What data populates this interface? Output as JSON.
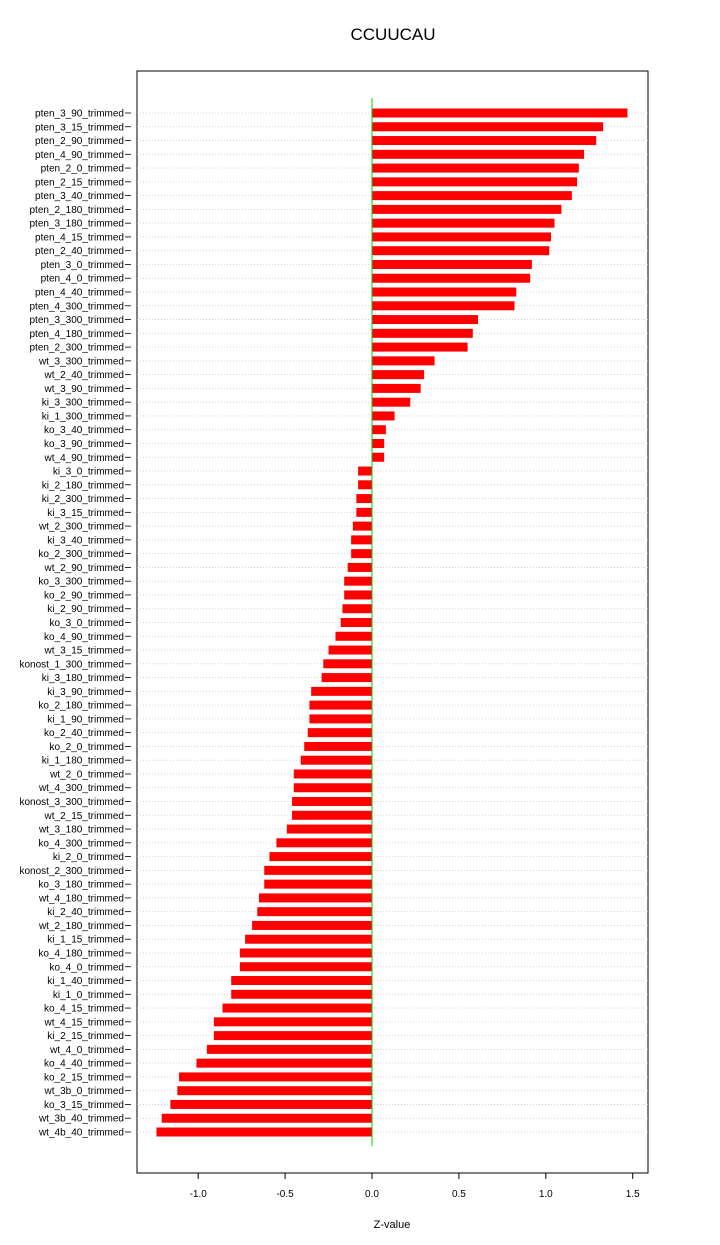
{
  "chart_data": {
    "type": "bar",
    "orientation": "horizontal",
    "title": "CCUUCAU",
    "xlabel": "Z-value",
    "ylabel": "",
    "xlim": [
      -1.33,
      1.58
    ],
    "xticks": [
      -1.0,
      -0.5,
      0.0,
      0.5,
      1.0,
      1.5
    ],
    "xtick_labels": [
      "-1.0",
      "-0.5",
      "0.0",
      "0.5",
      "1.0",
      "1.5"
    ],
    "grid": "horizontal dotted lines per category",
    "bar_color": "#ff0000",
    "zero_line_color": "#00cc00",
    "categories": [
      "pten_3_90_trimmed",
      "pten_3_15_trimmed",
      "pten_2_90_trimmed",
      "pten_4_90_trimmed",
      "pten_2_0_trimmed",
      "pten_2_15_trimmed",
      "pten_3_40_trimmed",
      "pten_2_180_trimmed",
      "pten_3_180_trimmed",
      "pten_4_15_trimmed",
      "pten_2_40_trimmed",
      "pten_3_0_trimmed",
      "pten_4_0_trimmed",
      "pten_4_40_trimmed",
      "pten_4_300_trimmed",
      "pten_3_300_trimmed",
      "pten_4_180_trimmed",
      "pten_2_300_trimmed",
      "wt_3_300_trimmed",
      "wt_2_40_trimmed",
      "wt_3_90_trimmed",
      "ki_3_300_trimmed",
      "ki_1_300_trimmed",
      "ko_3_40_trimmed",
      "ko_3_90_trimmed",
      "wt_4_90_trimmed",
      "ki_3_0_trimmed",
      "ki_2_180_trimmed",
      "ki_2_300_trimmed",
      "ki_3_15_trimmed",
      "wt_2_300_trimmed",
      "ki_3_40_trimmed",
      "ko_2_300_trimmed",
      "wt_2_90_trimmed",
      "ko_3_300_trimmed",
      "ko_2_90_trimmed",
      "ki_2_90_trimmed",
      "ko_3_0_trimmed",
      "ko_4_90_trimmed",
      "wt_3_15_trimmed",
      "konost_1_300_trimmed",
      "ki_3_180_trimmed",
      "ki_3_90_trimmed",
      "ko_2_180_trimmed",
      "ki_1_90_trimmed",
      "ko_2_40_trimmed",
      "ko_2_0_trimmed",
      "ki_1_180_trimmed",
      "wt_2_0_trimmed",
      "wt_4_300_trimmed",
      "konost_3_300_trimmed",
      "wt_2_15_trimmed",
      "wt_3_180_trimmed",
      "ko_4_300_trimmed",
      "ki_2_0_trimmed",
      "konost_2_300_trimmed",
      "ko_3_180_trimmed",
      "wt_4_180_trimmed",
      "ki_2_40_trimmed",
      "wt_2_180_trimmed",
      "ki_1_15_trimmed",
      "ko_4_180_trimmed",
      "ko_4_0_trimmed",
      "ki_1_40_trimmed",
      "ki_1_0_trimmed",
      "ko_4_15_trimmed",
      "wt_4_15_trimmed",
      "ki_2_15_trimmed",
      "wt_4_0_trimmed",
      "ko_4_40_trimmed",
      "ko_2_15_trimmed",
      "wt_3b_0_trimmed",
      "ko_3_15_trimmed",
      "wt_3b_40_trimmed",
      "wt_4b_40_trimmed"
    ],
    "values": [
      1.47,
      1.33,
      1.29,
      1.22,
      1.19,
      1.18,
      1.15,
      1.09,
      1.05,
      1.03,
      1.02,
      0.92,
      0.91,
      0.83,
      0.82,
      0.61,
      0.58,
      0.55,
      0.36,
      0.3,
      0.28,
      0.22,
      0.13,
      0.08,
      0.07,
      0.07,
      -0.08,
      -0.08,
      -0.09,
      -0.09,
      -0.11,
      -0.12,
      -0.12,
      -0.14,
      -0.16,
      -0.16,
      -0.17,
      -0.18,
      -0.21,
      -0.25,
      -0.28,
      -0.29,
      -0.35,
      -0.36,
      -0.36,
      -0.37,
      -0.39,
      -0.41,
      -0.45,
      -0.45,
      -0.46,
      -0.46,
      -0.49,
      -0.55,
      -0.59,
      -0.62,
      -0.62,
      -0.65,
      -0.66,
      -0.69,
      -0.73,
      -0.76,
      -0.76,
      -0.81,
      -0.81,
      -0.86,
      -0.91,
      -0.91,
      -0.95,
      -1.01,
      -1.11,
      -1.12,
      -1.16,
      -1.21,
      -1.24
    ]
  }
}
